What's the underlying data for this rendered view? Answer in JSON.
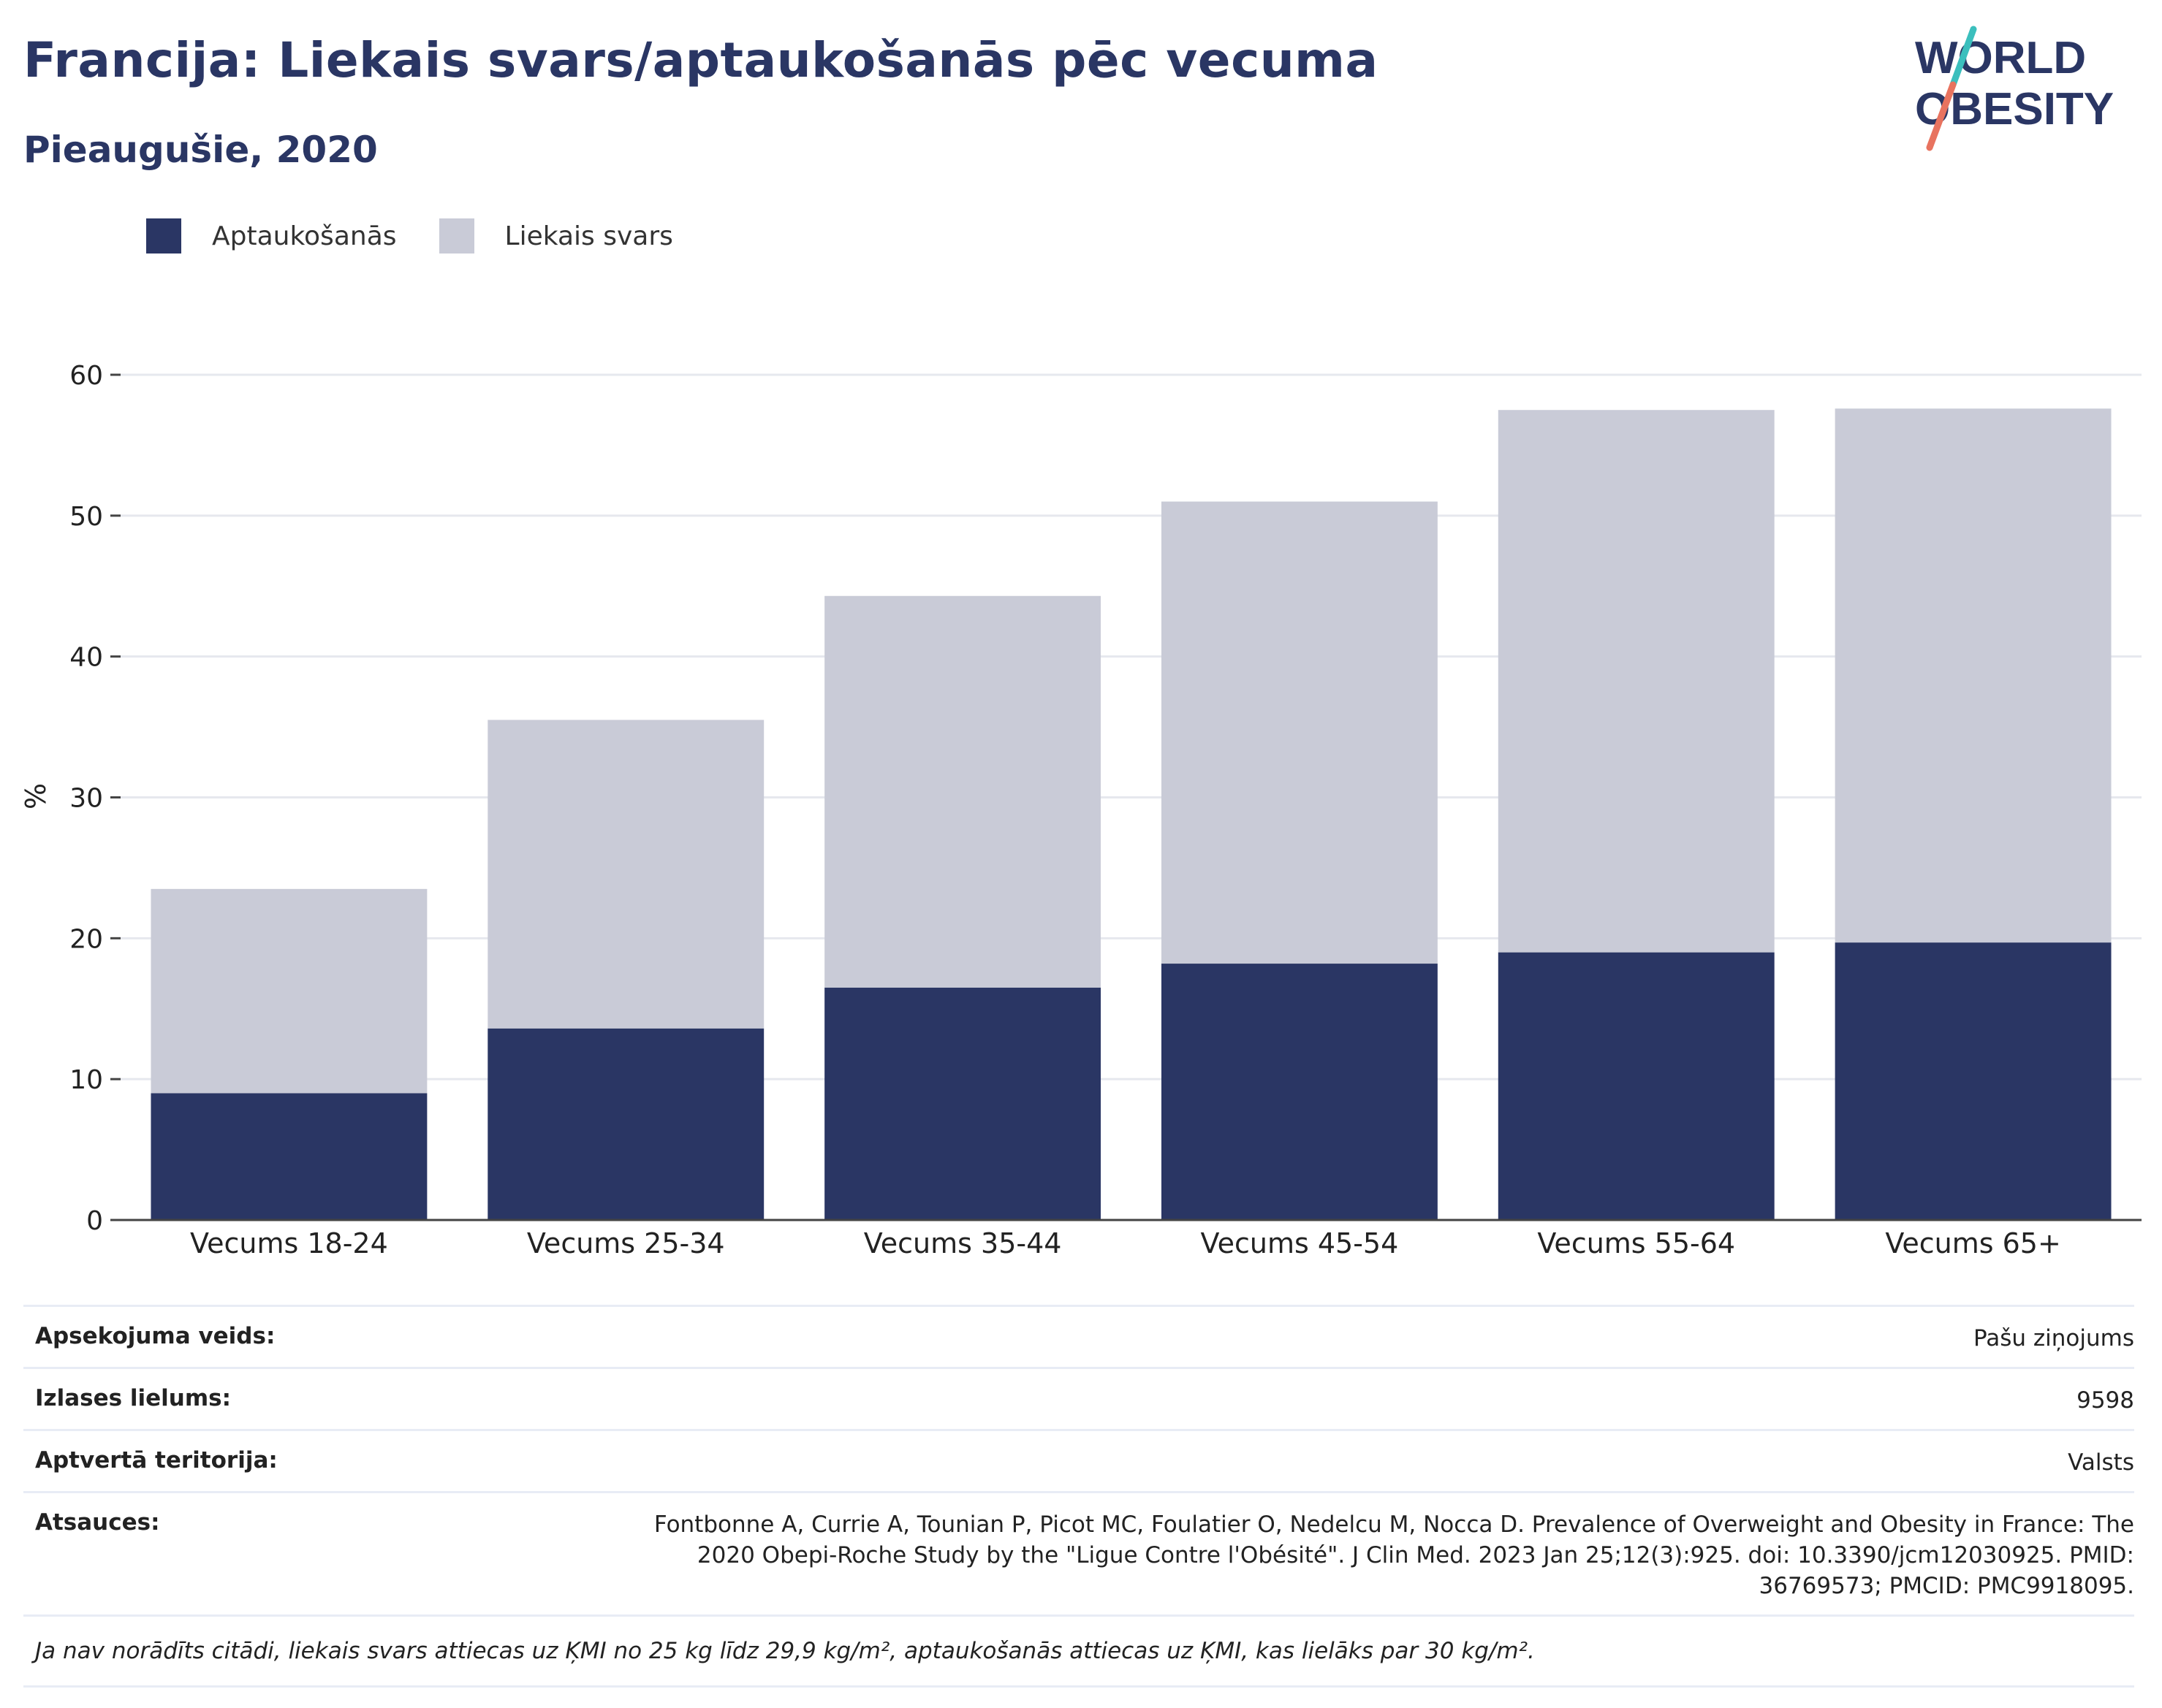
{
  "header": {
    "title": "Francija: Liekais svars/aptaukošanās pēc vecuma",
    "subtitle": "Pieaugušie, 2020"
  },
  "logo": {
    "line1": "WORLD",
    "line2": "OBESITY"
  },
  "colors": {
    "obesity": "#2a3664",
    "overweight": "#c9cbd7",
    "grid": "#e6e8ee",
    "axis": "#444444",
    "text": "#333333",
    "logo_teal": "#3bbfbd",
    "logo_coral": "#e8735f"
  },
  "chart_data": {
    "type": "bar",
    "stacked": true,
    "title": "Francija: Liekais svars/aptaukošanās pēc vecuma",
    "subtitle": "Pieaugušie, 2020",
    "categories": [
      "Vecums 18-24",
      "Vecums 25-34",
      "Vecums 35-44",
      "Vecums 45-54",
      "Vecums 55-64",
      "Vecums 65+"
    ],
    "series": [
      {
        "name": "Aptaukošanās",
        "values": [
          9.0,
          13.6,
          16.5,
          18.2,
          19.0,
          19.7
        ]
      },
      {
        "name": "Liekais svars",
        "values": [
          14.5,
          21.9,
          27.8,
          32.8,
          38.5,
          37.9
        ]
      }
    ],
    "xlabel": "",
    "ylabel": "%",
    "ylim": [
      0,
      60
    ],
    "yticks": [
      0,
      10,
      20,
      30,
      40,
      50,
      60
    ],
    "grid": true,
    "legend_position": "top-left"
  },
  "metadata": [
    {
      "key": "Apsekojuma veids:",
      "value": "Pašu ziņojums"
    },
    {
      "key": "Izlases lielums:",
      "value": "9598"
    },
    {
      "key": "Aptvertā teritorija:",
      "value": "Valsts"
    },
    {
      "key": "Atsauces:",
      "value": "Fontbonne A, Currie A, Tounian P, Picot MC, Foulatier O, Nedelcu M, Nocca D. Prevalence of Overweight and Obesity in France: The 2020 Obepi-Roche Study by the \"Ligue Contre l'Obésité\". J Clin Med. 2023 Jan 25;12(3):925. doi: 10.3390/jcm12030925. PMID: 36769573; PMCID: PMC9918095."
    }
  ],
  "footnote": "Ja nav norādīts citādi, liekais svars attiecas uz ĶMI no 25 kg līdz 29,9 kg/m², aptaukošanās attiecas uz ĶMI, kas lielāks par 30 kg/m²."
}
